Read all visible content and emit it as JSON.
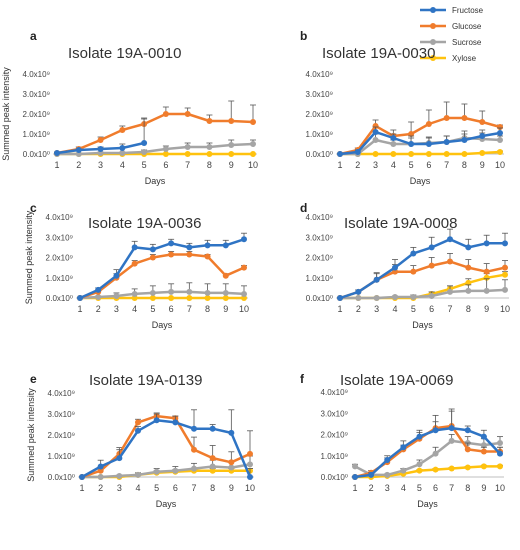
{
  "legend": {
    "entries": [
      {
        "name": "Fructose",
        "color": "#2f74c4"
      },
      {
        "name": "Glucose",
        "color": "#f07c2c"
      },
      {
        "name": "Sucrose",
        "color": "#a5a5a5"
      },
      {
        "name": "Xylose",
        "color": "#ffc20e"
      }
    ],
    "placement": "top-right"
  },
  "chart_data": [
    {
      "type": "line",
      "panel": "a",
      "title": "Isolate 19A-0010",
      "xlabel": "Days",
      "ylabel": "Summed peak intensity",
      "ytick_labels": [
        "0.0x10⁰",
        "1.0x10⁹",
        "2.0x10⁹",
        "3.0x10⁹",
        "4.0x10⁹"
      ],
      "ytick_values": [
        0,
        1,
        2,
        3,
        4
      ],
      "ylim": [
        0,
        4
      ],
      "x": [
        1,
        2,
        3,
        4,
        5,
        6,
        7,
        8,
        9,
        10
      ],
      "series": [
        {
          "name": "Fructose",
          "values": [
            0.05,
            0.2,
            0.25,
            0.3,
            0.55,
            null,
            null,
            null,
            null,
            null
          ],
          "err": [
            0.03,
            0.05,
            0.1,
            0.2,
            1.2,
            null,
            null,
            null,
            null,
            null
          ]
        },
        {
          "name": "Glucose",
          "values": [
            0.05,
            0.25,
            0.7,
            1.2,
            1.5,
            2.0,
            2.0,
            1.65,
            1.65,
            1.6
          ],
          "err": [
            0.05,
            0.1,
            0.15,
            0.2,
            0.3,
            0.35,
            0.3,
            0.3,
            1.0,
            0.85
          ]
        },
        {
          "name": "Sucrose",
          "values": [
            0.0,
            0.0,
            0.05,
            0.05,
            0.1,
            0.25,
            0.35,
            0.35,
            0.45,
            0.5
          ],
          "err": [
            0.02,
            0.02,
            0.05,
            0.05,
            0.1,
            0.15,
            0.2,
            0.2,
            0.25,
            0.2
          ]
        },
        {
          "name": "Xylose",
          "values": [
            0.0,
            0.0,
            0.0,
            0.0,
            0.0,
            0.0,
            0.0,
            0.0,
            0.0,
            0.0
          ],
          "err": [
            0,
            0,
            0,
            0,
            0,
            0,
            0,
            0,
            0,
            0
          ]
        }
      ]
    },
    {
      "type": "line",
      "panel": "b",
      "title": "Isolate 19A-0030",
      "xlabel": "Days",
      "ylabel": "",
      "ytick_labels": [
        "0.0x10⁰",
        "1.0x10⁹",
        "2.0x10⁹",
        "3.0x10⁹",
        "4.0x10⁹"
      ],
      "ytick_values": [
        0,
        1,
        2,
        3,
        4
      ],
      "ylim": [
        0,
        4
      ],
      "x": [
        1,
        2,
        3,
        4,
        5,
        6,
        7,
        8,
        9,
        10
      ],
      "series": [
        {
          "name": "Fructose",
          "values": [
            0.0,
            0.1,
            1.1,
            0.8,
            0.5,
            0.5,
            0.6,
            0.7,
            0.9,
            1.05
          ],
          "err": [
            0.02,
            0.1,
            0.25,
            0.2,
            0.4,
            0.3,
            0.3,
            0.3,
            0.3,
            0.25
          ]
        },
        {
          "name": "Glucose",
          "values": [
            0.0,
            0.2,
            1.4,
            0.9,
            1.0,
            1.5,
            1.8,
            1.8,
            1.6,
            1.35
          ],
          "err": [
            0.02,
            0.1,
            0.3,
            0.3,
            0.6,
            0.7,
            0.8,
            0.7,
            0.55,
            0.1
          ]
        },
        {
          "name": "Sucrose",
          "values": [
            0.0,
            0.0,
            0.7,
            0.5,
            0.5,
            0.55,
            0.6,
            0.8,
            0.75,
            0.7
          ],
          "err": [
            0.02,
            0.05,
            0.3,
            0.2,
            0.3,
            0.3,
            0.3,
            0.35,
            0.3,
            0.2
          ]
        },
        {
          "name": "Xylose",
          "values": [
            0.0,
            0.0,
            0.0,
            0.0,
            0.0,
            0.0,
            0.0,
            0.0,
            0.05,
            0.1
          ],
          "err": [
            0,
            0,
            0,
            0,
            0,
            0,
            0,
            0,
            0.02,
            0.05
          ]
        }
      ]
    },
    {
      "type": "line",
      "panel": "c",
      "title": "Isolate 19A-0036",
      "xlabel": "Days",
      "ylabel": "Summed peak intensity",
      "ytick_labels": [
        "0.0x10⁰",
        "1.0x10⁹",
        "2.0x10⁹",
        "3.0x10⁹",
        "4.0x10⁹"
      ],
      "ytick_values": [
        0,
        1,
        2,
        3,
        4
      ],
      "ylim": [
        0,
        4
      ],
      "x": [
        1,
        2,
        3,
        4,
        5,
        6,
        7,
        8,
        9,
        10
      ],
      "series": [
        {
          "name": "Fructose",
          "values": [
            0.0,
            0.4,
            1.1,
            2.5,
            2.4,
            2.7,
            2.5,
            2.6,
            2.6,
            2.9
          ],
          "err": [
            0.02,
            0.1,
            0.3,
            0.3,
            0.25,
            0.2,
            0.2,
            0.25,
            0.25,
            0.3
          ]
        },
        {
          "name": "Glucose",
          "values": [
            0.0,
            0.3,
            1.0,
            1.7,
            2.0,
            2.15,
            2.15,
            2.05,
            1.1,
            1.5
          ],
          "err": [
            0.02,
            0.1,
            0.2,
            0.15,
            0.15,
            0.15,
            0.15,
            0.1,
            0.1,
            0.1
          ]
        },
        {
          "name": "Sucrose",
          "values": [
            0.0,
            0.05,
            0.1,
            0.2,
            0.25,
            0.3,
            0.3,
            0.25,
            0.25,
            0.2
          ],
          "err": [
            0.02,
            0.05,
            0.15,
            0.25,
            0.35,
            0.4,
            0.45,
            0.45,
            0.45,
            0.4
          ]
        },
        {
          "name": "Xylose",
          "values": [
            0.0,
            0.0,
            0.0,
            0.0,
            0.0,
            0.0,
            0.0,
            0.0,
            0.0,
            0.0
          ],
          "err": [
            0,
            0,
            0,
            0,
            0,
            0,
            0,
            0,
            0,
            0
          ]
        }
      ]
    },
    {
      "type": "line",
      "panel": "d",
      "title": "Isolate 19A-0008",
      "xlabel": "Days",
      "ylabel": "",
      "ytick_labels": [
        "0.0x10⁰",
        "1.0x10⁹",
        "2.0x10⁹",
        "3.0x10⁹",
        "4.0x10⁹"
      ],
      "ytick_values": [
        0,
        1,
        2,
        3,
        4
      ],
      "ylim": [
        0,
        4
      ],
      "x": [
        1,
        2,
        3,
        4,
        5,
        6,
        7,
        8,
        9,
        10
      ],
      "series": [
        {
          "name": "Fructose",
          "values": [
            0.0,
            0.3,
            0.9,
            1.5,
            2.2,
            2.5,
            2.9,
            2.5,
            2.7,
            2.7
          ],
          "err": [
            0.02,
            0.1,
            0.3,
            0.4,
            0.3,
            0.5,
            0.5,
            0.4,
            0.4,
            0.5
          ]
        },
        {
          "name": "Glucose",
          "values": [
            0.0,
            0.3,
            0.9,
            1.3,
            1.3,
            1.6,
            1.8,
            1.5,
            1.3,
            1.5
          ],
          "err": [
            0.02,
            0.1,
            0.35,
            0.35,
            0.3,
            0.4,
            0.4,
            0.4,
            0.4,
            0.35
          ]
        },
        {
          "name": "Sucrose",
          "values": [
            0.0,
            0.0,
            0.0,
            0.05,
            0.05,
            0.1,
            0.3,
            0.35,
            0.35,
            0.4
          ],
          "err": [
            0.02,
            0.02,
            0.05,
            0.05,
            0.1,
            0.2,
            0.3,
            0.3,
            0.6,
            0.5
          ]
        },
        {
          "name": "Xylose",
          "values": [
            0.0,
            0.0,
            0.0,
            0.0,
            0.0,
            0.2,
            0.45,
            0.75,
            1.0,
            1.15
          ],
          "err": [
            0,
            0,
            0,
            0,
            0.05,
            0.1,
            0.15,
            0.2,
            0.2,
            0.15
          ]
        }
      ]
    },
    {
      "type": "line",
      "panel": "e",
      "title": "Isolate 19A-0139",
      "xlabel": "Days",
      "ylabel": "Summed peak intensity",
      "ytick_labels": [
        "0.0x10⁰",
        "1.0x10⁹",
        "2.0x10⁹",
        "3.0x10⁹",
        "4.0x10⁹"
      ],
      "ytick_values": [
        0,
        1,
        2,
        3,
        4
      ],
      "ylim": [
        0,
        4
      ],
      "x": [
        1,
        2,
        3,
        4,
        5,
        6,
        7,
        8,
        9,
        10
      ],
      "series": [
        {
          "name": "Fructose",
          "values": [
            0.0,
            0.5,
            0.9,
            2.2,
            2.7,
            2.6,
            2.3,
            2.3,
            2.1,
            0.0
          ],
          "err": [
            0.02,
            0.3,
            0.4,
            0.2,
            0.3,
            0.3,
            0.9,
            0.2,
            1.1,
            0.4
          ]
        },
        {
          "name": "Glucose",
          "values": [
            0.0,
            0.3,
            1.1,
            2.6,
            2.9,
            2.8,
            1.3,
            0.9,
            0.7,
            1.1
          ],
          "err": [
            0.02,
            0.2,
            0.3,
            0.15,
            0.15,
            0.1,
            0.6,
            0.6,
            0.5,
            1.1
          ]
        },
        {
          "name": "Sucrose",
          "values": [
            0.0,
            0.0,
            0.05,
            0.1,
            0.25,
            0.3,
            0.4,
            0.5,
            0.45,
            0.6
          ],
          "err": [
            0.02,
            0.02,
            0.05,
            0.1,
            0.15,
            0.2,
            0.25,
            0.3,
            0.3,
            0.4
          ]
        },
        {
          "name": "Xylose",
          "values": [
            0.0,
            0.0,
            0.0,
            0.1,
            0.2,
            0.25,
            0.3,
            0.3,
            0.3,
            0.3
          ],
          "err": [
            0,
            0,
            0,
            0.05,
            0.1,
            0.1,
            0.1,
            0.1,
            0.1,
            0.1
          ]
        }
      ]
    },
    {
      "type": "line",
      "panel": "f",
      "title": "Isolate 19A-0069",
      "xlabel": "Days",
      "ylabel": "",
      "ytick_labels": [
        "0.0x10⁰",
        "1.0x10⁹",
        "2.0x10⁹",
        "3.0x10⁹",
        "4.0x10⁹"
      ],
      "ytick_values": [
        0,
        1,
        2,
        3,
        4
      ],
      "ylim": [
        0,
        4
      ],
      "x": [
        1,
        2,
        3,
        4,
        5,
        6,
        7,
        8,
        9,
        10
      ],
      "series": [
        {
          "name": "Fructose",
          "values": [
            0.0,
            0.1,
            0.8,
            1.4,
            1.9,
            2.2,
            2.3,
            2.2,
            1.9,
            1.1
          ],
          "err": [
            0.02,
            0.1,
            0.2,
            0.3,
            0.3,
            0.4,
            0.8,
            0.2,
            0.3,
            0.3
          ]
        },
        {
          "name": "Glucose",
          "values": [
            0.0,
            0.2,
            0.7,
            1.3,
            1.8,
            2.3,
            2.4,
            1.3,
            1.2,
            1.2
          ],
          "err": [
            0.02,
            0.1,
            0.2,
            0.2,
            0.3,
            0.6,
            0.8,
            0.3,
            0.2,
            0.2
          ]
        },
        {
          "name": "Sucrose",
          "values": [
            0.5,
            0.1,
            0.1,
            0.3,
            0.6,
            1.1,
            1.7,
            1.6,
            1.5,
            1.6
          ],
          "err": [
            0.1,
            0.05,
            0.05,
            0.1,
            0.2,
            0.3,
            0.3,
            0.3,
            0.3,
            0.3
          ]
        },
        {
          "name": "Xylose",
          "values": [
            0.0,
            0.0,
            0.05,
            0.15,
            0.3,
            0.35,
            0.4,
            0.45,
            0.5,
            0.5
          ],
          "err": [
            0,
            0,
            0.02,
            0.05,
            0.05,
            0.05,
            0.05,
            0.05,
            0.05,
            0.05
          ]
        }
      ]
    }
  ]
}
